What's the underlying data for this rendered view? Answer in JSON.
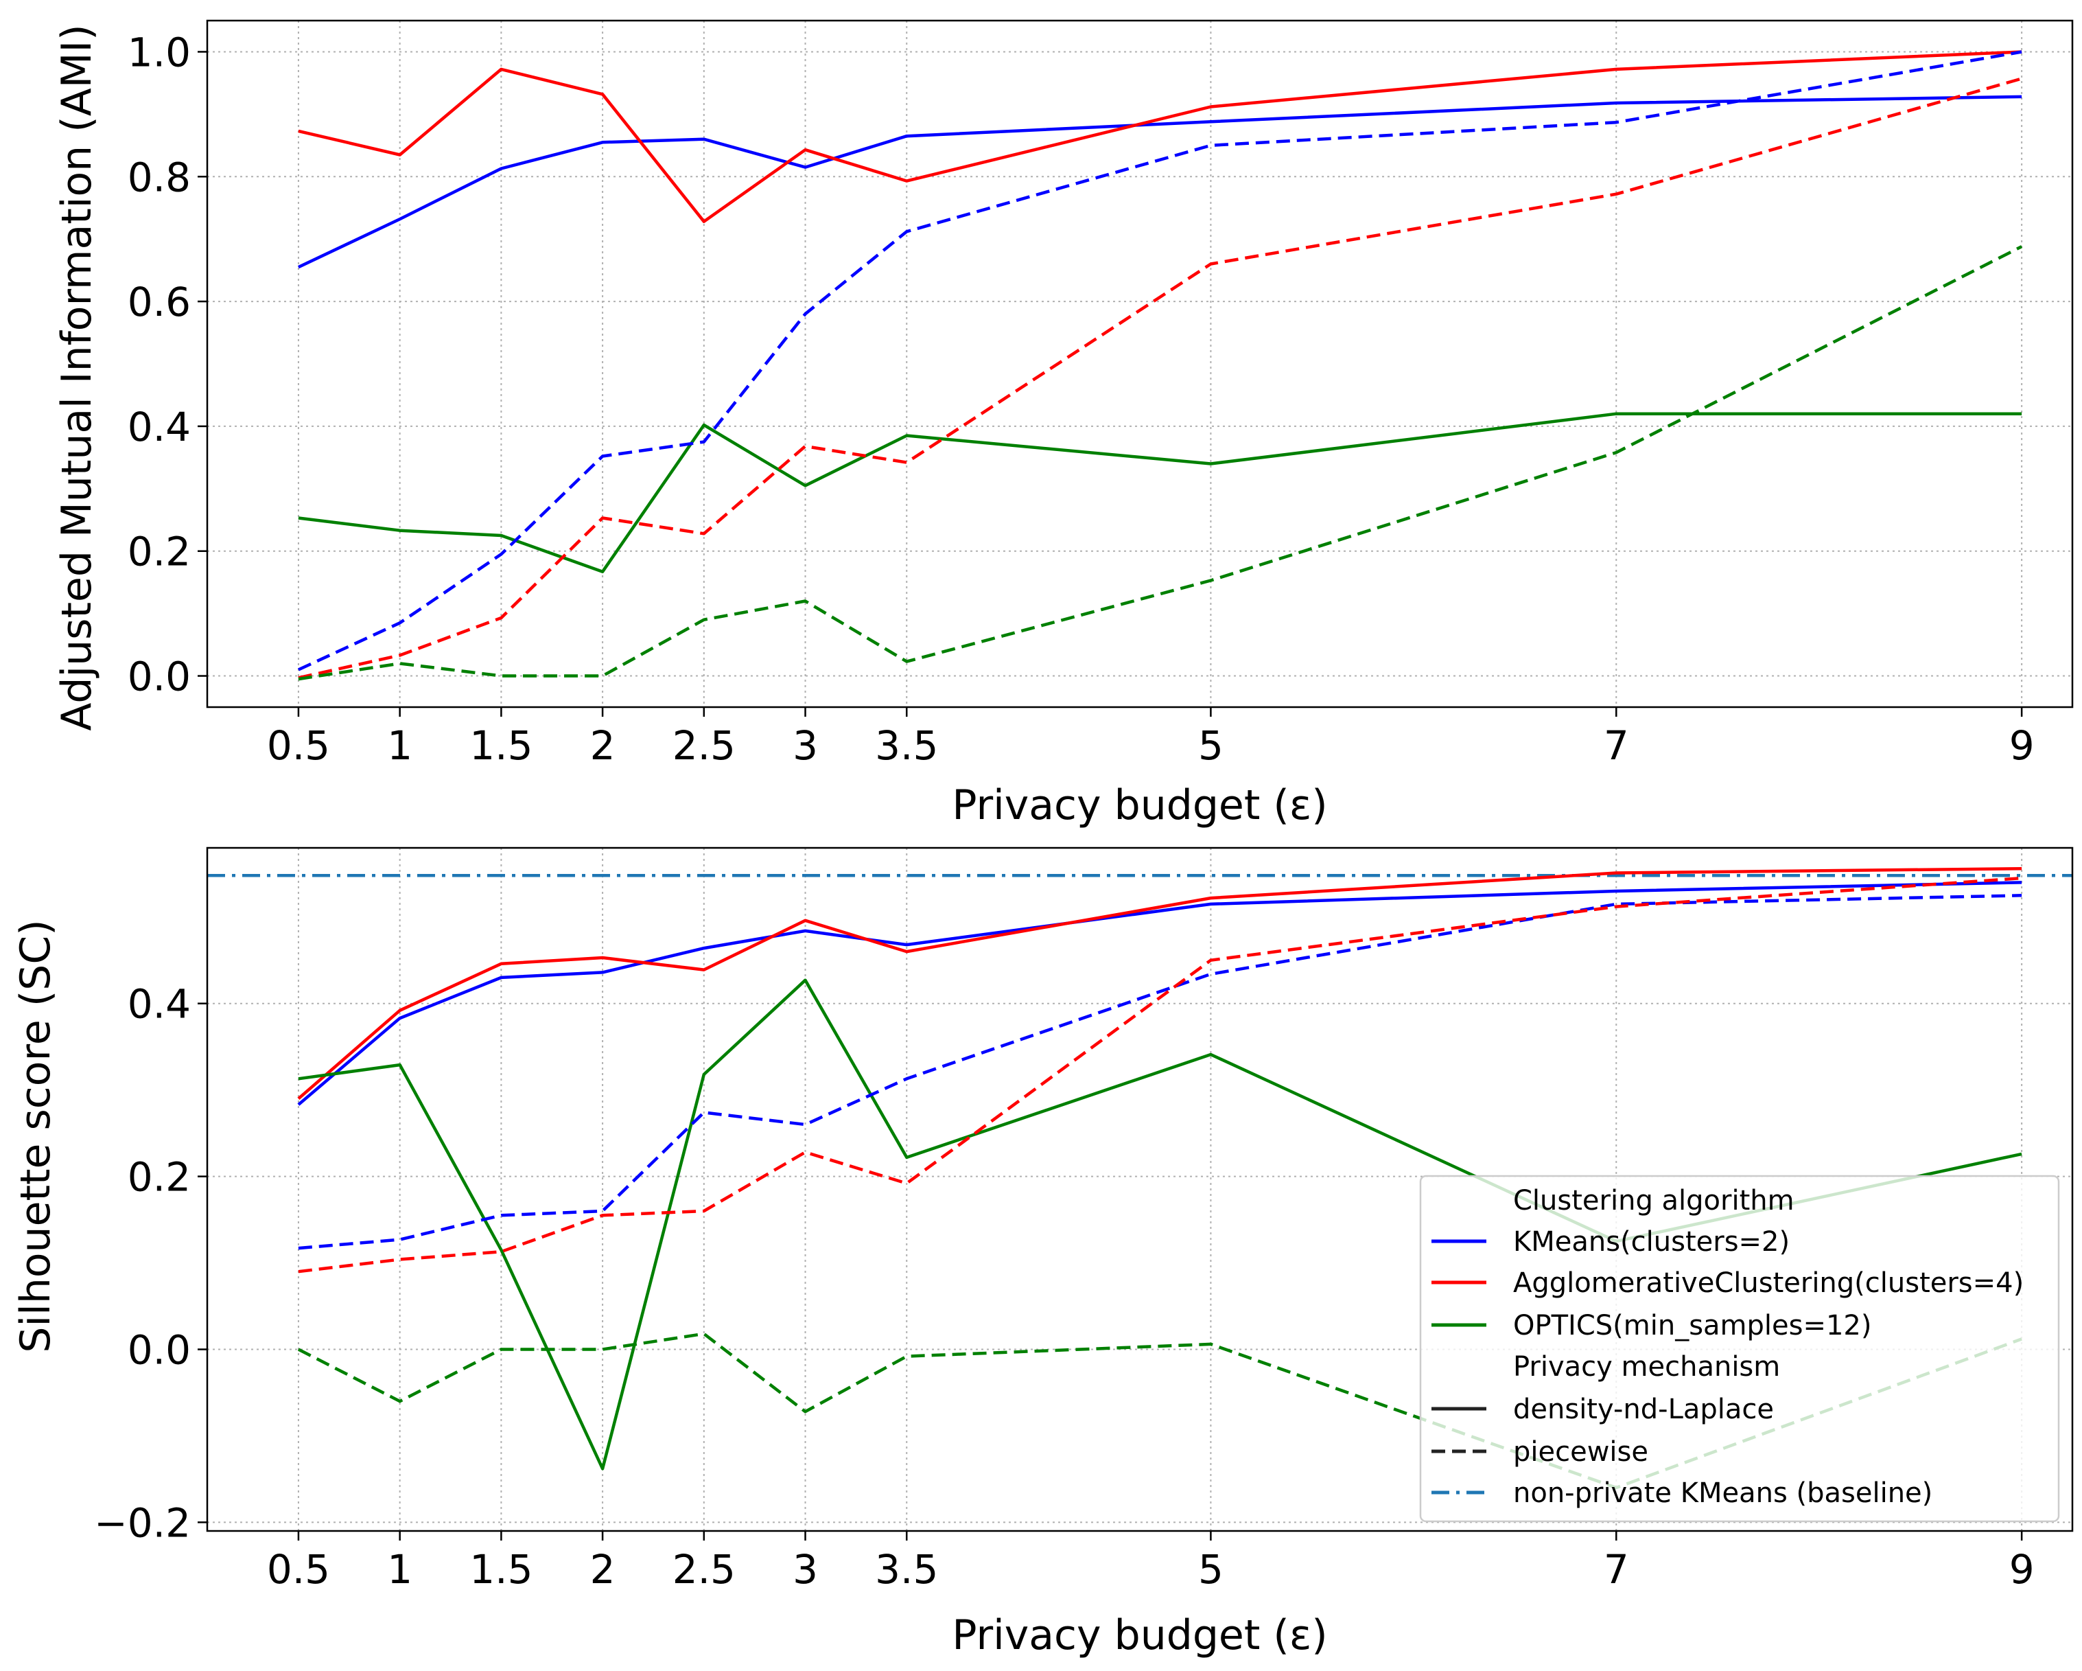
{
  "chart_data": [
    {
      "type": "line",
      "xlabel": "Privacy budget (ε)",
      "ylabel": "Adjusted Mutual Information (AMI)",
      "x": [
        0.5,
        1,
        1.5,
        2,
        2.5,
        3,
        3.5,
        5,
        7,
        9
      ],
      "x_tick_labels": [
        "0.5",
        "1",
        "1.5",
        "2",
        "2.5",
        "3",
        "3.5",
        "5",
        "7",
        "9"
      ],
      "xlim": [
        0.05,
        9.25
      ],
      "ylim": [
        -0.05,
        1.05
      ],
      "y_ticks": [
        0.0,
        0.2,
        0.4,
        0.6,
        0.8,
        1.0
      ],
      "y_tick_labels": [
        "0.0",
        "0.2",
        "0.4",
        "0.6",
        "0.8",
        "1.0"
      ],
      "grid": true,
      "series": [
        {
          "name": "KMeans(clusters=2)",
          "mechanism": "density-nd-Laplace",
          "color": "#0000ff",
          "dash": "solid",
          "values": [
            0.655,
            0.732,
            0.813,
            0.855,
            0.86,
            0.815,
            0.865,
            0.888,
            0.918,
            0.928
          ]
        },
        {
          "name": "AgglomerativeClustering(clusters=4)",
          "mechanism": "density-nd-Laplace",
          "color": "#ff0000",
          "dash": "solid",
          "values": [
            0.873,
            0.835,
            0.972,
            0.932,
            0.728,
            0.843,
            0.793,
            0.912,
            0.972,
            1.0
          ]
        },
        {
          "name": "OPTICS(min_samples=12)",
          "mechanism": "density-nd-Laplace",
          "color": "#008000",
          "dash": "solid",
          "values": [
            0.253,
            0.233,
            0.225,
            0.167,
            0.402,
            0.305,
            0.385,
            0.34,
            0.42,
            0.42
          ]
        },
        {
          "name": "KMeans(clusters=2)",
          "mechanism": "piecewise",
          "color": "#0000ff",
          "dash": "dashed",
          "values": [
            0.01,
            0.085,
            0.195,
            0.352,
            0.375,
            0.58,
            0.712,
            0.85,
            0.887,
            1.0
          ]
        },
        {
          "name": "AgglomerativeClustering(clusters=4)",
          "mechanism": "piecewise",
          "color": "#ff0000",
          "dash": "dashed",
          "values": [
            -0.003,
            0.033,
            0.093,
            0.253,
            0.228,
            0.368,
            0.342,
            0.66,
            0.772,
            0.957
          ]
        },
        {
          "name": "OPTICS(min_samples=12)",
          "mechanism": "piecewise",
          "color": "#008000",
          "dash": "dashed",
          "values": [
            -0.005,
            0.02,
            0.0,
            0.0,
            0.09,
            0.12,
            0.023,
            0.153,
            0.358,
            0.688
          ]
        }
      ]
    },
    {
      "type": "line",
      "xlabel": "Privacy budget (ε)",
      "ylabel": "Silhouette score (SC)",
      "x": [
        0.5,
        1,
        1.5,
        2,
        2.5,
        3,
        3.5,
        5,
        7,
        9
      ],
      "x_tick_labels": [
        "0.5",
        "1",
        "1.5",
        "2",
        "2.5",
        "3",
        "3.5",
        "5",
        "7",
        "9"
      ],
      "xlim": [
        0.05,
        9.25
      ],
      "ylim": [
        -0.21,
        0.58
      ],
      "y_ticks": [
        -0.2,
        0.0,
        0.2,
        0.4
      ],
      "y_tick_labels": [
        "−0.2",
        "0.0",
        "0.2",
        "0.4"
      ],
      "grid": true,
      "baseline": {
        "name": "non-private KMeans (baseline)",
        "value": 0.548,
        "color": "#1f77b4",
        "dash": "dashdot"
      },
      "series": [
        {
          "name": "KMeans(clusters=2)",
          "mechanism": "density-nd-Laplace",
          "color": "#0000ff",
          "dash": "solid",
          "values": [
            0.283,
            0.383,
            0.43,
            0.436,
            0.464,
            0.484,
            0.468,
            0.515,
            0.53,
            0.54
          ]
        },
        {
          "name": "AgglomerativeClustering(clusters=4)",
          "mechanism": "density-nd-Laplace",
          "color": "#ff0000",
          "dash": "solid",
          "values": [
            0.29,
            0.392,
            0.446,
            0.453,
            0.439,
            0.496,
            0.46,
            0.522,
            0.551,
            0.556
          ]
        },
        {
          "name": "OPTICS(min_samples=12)",
          "mechanism": "density-nd-Laplace",
          "color": "#008000",
          "dash": "solid",
          "values": [
            0.313,
            0.329,
            0.115,
            -0.138,
            0.318,
            0.427,
            0.222,
            0.341,
            0.125,
            0.226
          ]
        },
        {
          "name": "KMeans(clusters=2)",
          "mechanism": "piecewise",
          "color": "#0000ff",
          "dash": "dashed",
          "values": [
            0.117,
            0.127,
            0.155,
            0.16,
            0.274,
            0.26,
            0.313,
            0.434,
            0.515,
            0.525
          ]
        },
        {
          "name": "AgglomerativeClustering(clusters=4)",
          "mechanism": "piecewise",
          "color": "#ff0000",
          "dash": "dashed",
          "values": [
            0.09,
            0.104,
            0.113,
            0.155,
            0.16,
            0.228,
            0.192,
            0.45,
            0.512,
            0.545
          ]
        },
        {
          "name": "OPTICS(min_samples=12)",
          "mechanism": "piecewise",
          "color": "#008000",
          "dash": "dashed",
          "values": [
            0.0,
            -0.06,
            0.0,
            0.0,
            0.018,
            -0.072,
            -0.008,
            0.006,
            -0.16,
            0.012
          ]
        }
      ],
      "legend": {
        "placement": "lower-right",
        "section_titles": [
          "Clustering algorithm",
          "Privacy mechanism"
        ],
        "algorithm_entries": [
          {
            "label": "KMeans(clusters=2)",
            "color": "#0000ff"
          },
          {
            "label": "AgglomerativeClustering(clusters=4)",
            "color": "#ff0000"
          },
          {
            "label": "OPTICS(min_samples=12)",
            "color": "#008000"
          }
        ],
        "mechanism_entries": [
          {
            "label": "density-nd-Laplace",
            "color": "#222222",
            "dash": "solid"
          },
          {
            "label": "piecewise",
            "color": "#222222",
            "dash": "dashed"
          },
          {
            "label": "non-private KMeans (baseline)",
            "color": "#1f77b4",
            "dash": "dashdot"
          }
        ]
      }
    }
  ]
}
